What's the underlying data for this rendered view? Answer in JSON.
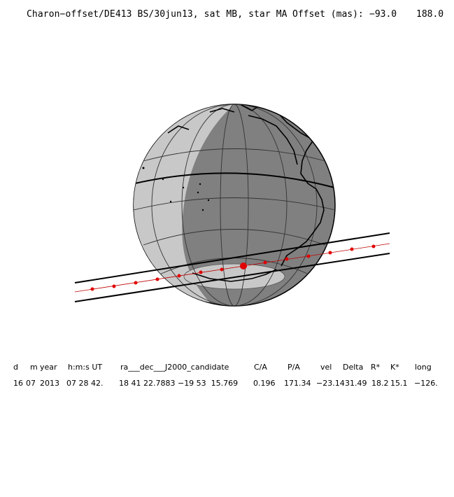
{
  "header": {
    "title": "Charon−offset/DE413 BS/30jun13, sat MB, star MA",
    "offset_label": "Offset (mas):",
    "offset_x": "−93.0",
    "offset_y": "188.0"
  },
  "event": {
    "colors": {
      "globe_dark": "#808080",
      "globe_light": "#c8c8c8",
      "path_points": "#e00000",
      "lines": "#000000"
    }
  },
  "table": {
    "headers": [
      "d",
      "m",
      "year",
      "h:m:s UT",
      "ra___dec___J2000_candidate",
      "C/A",
      "P/A",
      "vel",
      "Delta",
      "R*",
      "K*",
      "long"
    ],
    "values": [
      "16",
      "07",
      "2013",
      "07 28 42.",
      "18 41 22.7883 −19 53  15.769",
      "0.196",
      "171.34",
      "−23.14",
      "31.49",
      "18.2",
      "15.1",
      "−126."
    ]
  }
}
